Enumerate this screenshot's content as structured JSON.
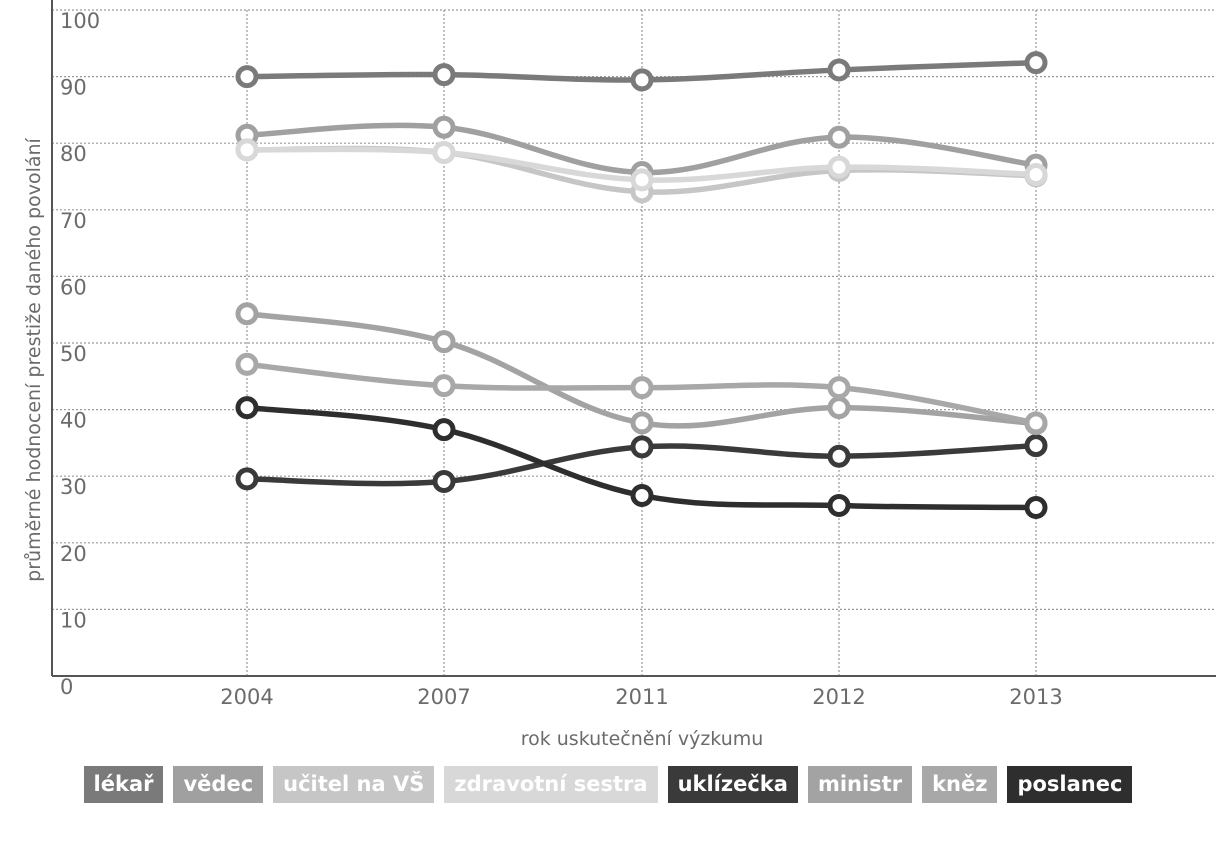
{
  "chart_data": {
    "type": "line",
    "title": "",
    "xlabel": "rok uskutečnění výzkumu",
    "ylabel": "průměrné hodnocení prestiže daného povolání",
    "categories": [
      "2004",
      "2007",
      "2011",
      "2012",
      "2013"
    ],
    "y_ticks": [
      "0",
      "10",
      "20",
      "30",
      "40",
      "50",
      "60",
      "70",
      "80",
      "90",
      "100"
    ],
    "ylim": [
      0,
      100
    ],
    "grid": true,
    "legend_position": "bottom",
    "series": [
      {
        "name": "lékař",
        "color": "#7a7a7a",
        "values": [
          90,
          90.3,
          89.5,
          91,
          92.1
        ]
      },
      {
        "name": "vědec",
        "color": "#a0a0a0",
        "values": [
          81.2,
          82.4,
          75.6,
          80.9,
          76.7
        ]
      },
      {
        "name": "učitel na VŠ",
        "color": "#c6c6c6",
        "values": [
          79,
          78.6,
          72.7,
          75.9,
          75.1
        ]
      },
      {
        "name": "zdravotní sestra",
        "color": "#d8d8d8",
        "values": [
          79,
          78.6,
          74.5,
          76.4,
          75.3
        ]
      },
      {
        "name": "uklízečka",
        "color": "#3a3a3a",
        "values": [
          29.6,
          29.2,
          34.4,
          33,
          34.6
        ]
      },
      {
        "name": "ministr",
        "color": "#a3a3a3",
        "values": [
          54.4,
          50.2,
          38,
          40.3,
          37.9
        ]
      },
      {
        "name": "kněz",
        "color": "#a8a8a8",
        "values": [
          46.8,
          43.6,
          43.3,
          43.3,
          38
        ]
      },
      {
        "name": "poslanec",
        "color": "#2e2e2e",
        "values": [
          40.3,
          37,
          27.1,
          25.6,
          25.3
        ]
      }
    ]
  }
}
